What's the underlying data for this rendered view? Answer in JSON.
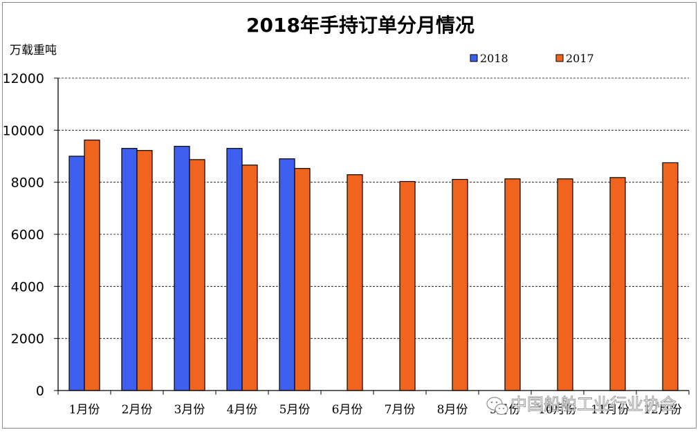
{
  "chart_data": {
    "type": "bar",
    "title": "2018年手持订单分月情况",
    "ylabel": "万载重吨",
    "xlabel": "",
    "categories": [
      "1月份",
      "2月份",
      "3月份",
      "4月份",
      "5月份",
      "6月份",
      "7月份",
      "8月份",
      "9月份",
      "10月份",
      "11月份",
      "12月份"
    ],
    "series": [
      {
        "name": "2018",
        "color": "#3f5fef",
        "values": [
          9000,
          9300,
          9380,
          9300,
          8900,
          null,
          null,
          null,
          null,
          null,
          null,
          null
        ]
      },
      {
        "name": "2017",
        "color": "#f0641e",
        "values": [
          9620,
          9220,
          8870,
          8660,
          8530,
          8290,
          8030,
          8110,
          8130,
          8130,
          8180,
          8750
        ]
      }
    ],
    "ylim": [
      0,
      12000
    ],
    "yticks": [
      0,
      2000,
      4000,
      6000,
      8000,
      10000,
      12000
    ],
    "grid": true,
    "legend_position": "top-right"
  },
  "watermark": {
    "text": "中国船舶工业行业协会",
    "icon": "wechat-icon"
  }
}
